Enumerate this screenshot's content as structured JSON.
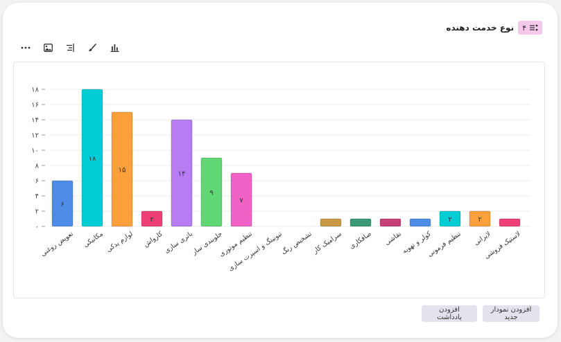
{
  "header": {
    "title": "نوع خدمت دهنده",
    "badge_count": "۴",
    "badge_color": "#f6c9ec"
  },
  "toolbar": {
    "icons": [
      "more-icon",
      "image-icon",
      "align-icon",
      "brush-icon",
      "bar-chart-icon"
    ]
  },
  "buttons": {
    "new_chart": "افزودن نمودار جدید",
    "add_note": "افزودن یادداشت"
  },
  "chart_data": {
    "type": "bar",
    "categories": [
      "تعویض روغنی",
      "مکانیکی",
      "لوازم یدکی",
      "کارواش",
      "باتری سازی",
      "جلوبندی ساز",
      "تنظیم موتوری",
      "تیونینگ و اسپرت سازی",
      "تشخیص رنگ",
      "سرامیک کار",
      "صافکاری",
      "نقاشی",
      "کولر و تهویه",
      "تنظیم فرمونی",
      "لایرانی",
      "لاستیک فروشی"
    ],
    "values": [
      6,
      18,
      15,
      2,
      14,
      9,
      7,
      0,
      0,
      1,
      1,
      1,
      1,
      2,
      2,
      1
    ],
    "value_labels": [
      "۶",
      "۱۸",
      "۱۵",
      "۲",
      "۱۴",
      "۹",
      "۷",
      "",
      "",
      "",
      "",
      "",
      "",
      "۲",
      "۲",
      ""
    ],
    "colors": [
      "#4f8ce8",
      "#00cdd4",
      "#fba03a",
      "#ee4076",
      "#b77cf2",
      "#60d675",
      "#f162c7",
      "#4f8ce8",
      "#4f8ce8",
      "#c99a45",
      "#3a9a74",
      "#c63f78",
      "#4f8ce8",
      "#00cdd4",
      "#fba03a",
      "#ee4076"
    ],
    "ylim": [
      0,
      18
    ],
    "yticks": [
      "۰",
      "۲",
      "۴",
      "۶",
      "۸",
      "۱۰",
      "۱۲",
      "۱۴",
      "۱۶",
      "۱۸"
    ],
    "grid": true,
    "title": "",
    "xlabel": "",
    "ylabel": ""
  }
}
